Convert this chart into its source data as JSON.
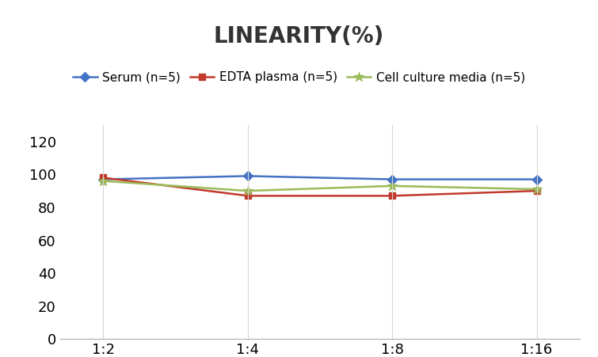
{
  "title": "LINEARITY(%)",
  "x_labels": [
    "1:2",
    "1:4",
    "1:8",
    "1:16"
  ],
  "x_positions": [
    0,
    1,
    2,
    3
  ],
  "series": [
    {
      "label": "Serum (n=5)",
      "values": [
        97,
        99,
        97,
        97
      ],
      "color": "#4472C4",
      "marker": "D",
      "markersize": 6
    },
    {
      "label": "EDTA plasma (n=5)",
      "values": [
        98,
        87,
        87,
        90
      ],
      "color": "#C0392B",
      "marker": "s",
      "markersize": 6
    },
    {
      "label": "Cell culture media (n=5)",
      "values": [
        96,
        90,
        93,
        91
      ],
      "color": "#9BBB59",
      "marker": "*",
      "markersize": 9
    }
  ],
  "ylim": [
    0,
    130
  ],
  "yticks": [
    0,
    20,
    40,
    60,
    80,
    100,
    120
  ],
  "title_fontsize": 20,
  "legend_fontsize": 11,
  "tick_fontsize": 13,
  "background_color": "#FFFFFF",
  "grid_color": "#D5D5D5"
}
